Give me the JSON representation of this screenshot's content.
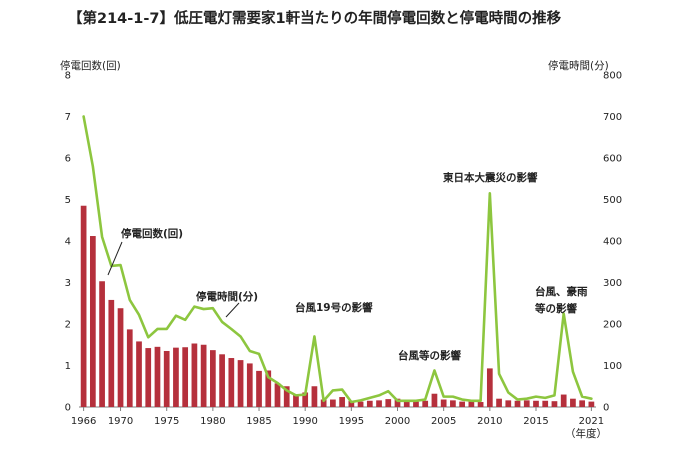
{
  "title": "【第214-1-7】低圧電灯需要家1軒当たりの年間停電回数と停電時間の推移",
  "chart_data": {
    "type": "bar",
    "title": "【第214-1-7】低圧電灯需要家1軒当たりの年間停電回数と停電時間の推移",
    "y_left_label": "停電回数(回)",
    "y_right_label": "停電時間(分)",
    "x_unit_label": "（年度）",
    "ylim_left": [
      0,
      8
    ],
    "ylim_right": [
      0,
      800
    ],
    "y_left_ticks": [
      "0",
      "1",
      "2",
      "3",
      "4",
      "5",
      "6",
      "7",
      "8"
    ],
    "y_right_ticks": [
      "0",
      "100",
      "200",
      "300",
      "400",
      "500",
      "600",
      "700",
      "800"
    ],
    "x_ticks": [
      "1966",
      "1970",
      "1975",
      "1980",
      "1985",
      "1990",
      "1995",
      "2000",
      "2005",
      "2010",
      "2015",
      "2021"
    ],
    "x": [
      1966,
      1967,
      1968,
      1969,
      1970,
      1971,
      1972,
      1973,
      1974,
      1975,
      1976,
      1977,
      1978,
      1979,
      1980,
      1981,
      1982,
      1983,
      1984,
      1985,
      1986,
      1987,
      1988,
      1989,
      1990,
      1991,
      1992,
      1993,
      1994,
      1995,
      1996,
      1997,
      1998,
      1999,
      2000,
      2001,
      2002,
      2003,
      2004,
      2005,
      2006,
      2007,
      2008,
      2009,
      2010,
      2011,
      2012,
      2013,
      2014,
      2015,
      2016,
      2017,
      2018,
      2019,
      2020,
      2021
    ],
    "series": [
      {
        "name": "停電回数(回)",
        "axis": "left",
        "type": "bar",
        "color": "#b5303c",
        "values": [
          4.85,
          4.12,
          3.03,
          2.58,
          2.38,
          1.87,
          1.58,
          1.42,
          1.45,
          1.35,
          1.43,
          1.44,
          1.53,
          1.5,
          1.37,
          1.27,
          1.18,
          1.13,
          1.05,
          0.87,
          0.88,
          0.57,
          0.5,
          0.3,
          0.35,
          0.5,
          0.18,
          0.18,
          0.24,
          0.15,
          0.13,
          0.15,
          0.16,
          0.19,
          0.2,
          0.14,
          0.13,
          0.15,
          0.32,
          0.18,
          0.16,
          0.13,
          0.13,
          0.12,
          0.93,
          0.2,
          0.16,
          0.15,
          0.16,
          0.15,
          0.15,
          0.14,
          0.3,
          0.2,
          0.16,
          0.13
        ]
      },
      {
        "name": "停電時間(分)",
        "axis": "right",
        "type": "line",
        "color": "#8dc63f",
        "values": [
          700,
          580,
          410,
          340,
          342,
          258,
          222,
          168,
          188,
          188,
          220,
          210,
          242,
          236,
          238,
          205,
          188,
          170,
          135,
          128,
          72,
          58,
          40,
          28,
          30,
          170,
          15,
          40,
          42,
          12,
          16,
          22,
          28,
          38,
          15,
          15,
          15,
          18,
          88,
          25,
          25,
          18,
          15,
          15,
          515,
          80,
          35,
          18,
          20,
          25,
          22,
          28,
          225,
          85,
          25,
          20
        ]
      }
    ],
    "annotations": [
      {
        "text": "停電回数(回)"
      },
      {
        "text": "停電時間(分)"
      },
      {
        "text": "台風19号の影響"
      },
      {
        "text": "台風等の影響"
      },
      {
        "text": "東日本大震災の影響"
      },
      {
        "text": "台風、豪雨"
      },
      {
        "text": "等の影響"
      }
    ],
    "grid": false,
    "colors": {
      "bar": "#b5303c",
      "line": "#8dc63f",
      "axis": "#7f7f7f"
    }
  }
}
